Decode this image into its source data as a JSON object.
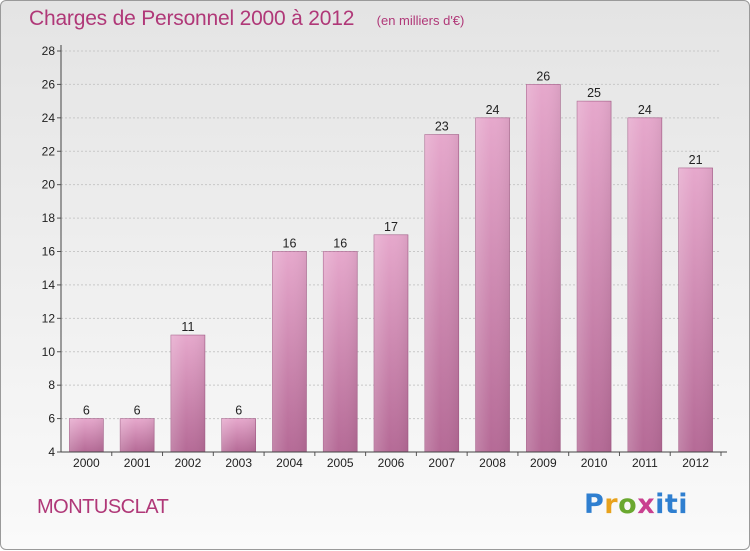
{
  "header": {
    "title": "Charges de Personnel 2000 à 2012",
    "unit": "(en milliers d'€)"
  },
  "footer": {
    "commune": "MONTUSCLAT",
    "logo_text": "Proxiti"
  },
  "colors": {
    "bar_top": "#e6a8cc",
    "bar_bottom": "#b56a96",
    "title": "#b03878"
  },
  "chart_data": {
    "type": "bar",
    "title": "Charges de Personnel 2000 à 2012",
    "subtitle": "(en milliers d'€)",
    "xlabel": "",
    "ylabel": "",
    "categories": [
      "2000",
      "2001",
      "2002",
      "2003",
      "2004",
      "2005",
      "2006",
      "2007",
      "2008",
      "2009",
      "2010",
      "2011",
      "2012"
    ],
    "values": [
      6,
      6,
      11,
      6,
      16,
      16,
      17,
      23,
      24,
      26,
      25,
      24,
      21
    ],
    "ylim": [
      4,
      28
    ],
    "yticks": [
      4,
      6,
      8,
      10,
      12,
      14,
      16,
      18,
      20,
      22,
      24,
      26,
      28
    ],
    "grid": true,
    "legend": "none"
  }
}
